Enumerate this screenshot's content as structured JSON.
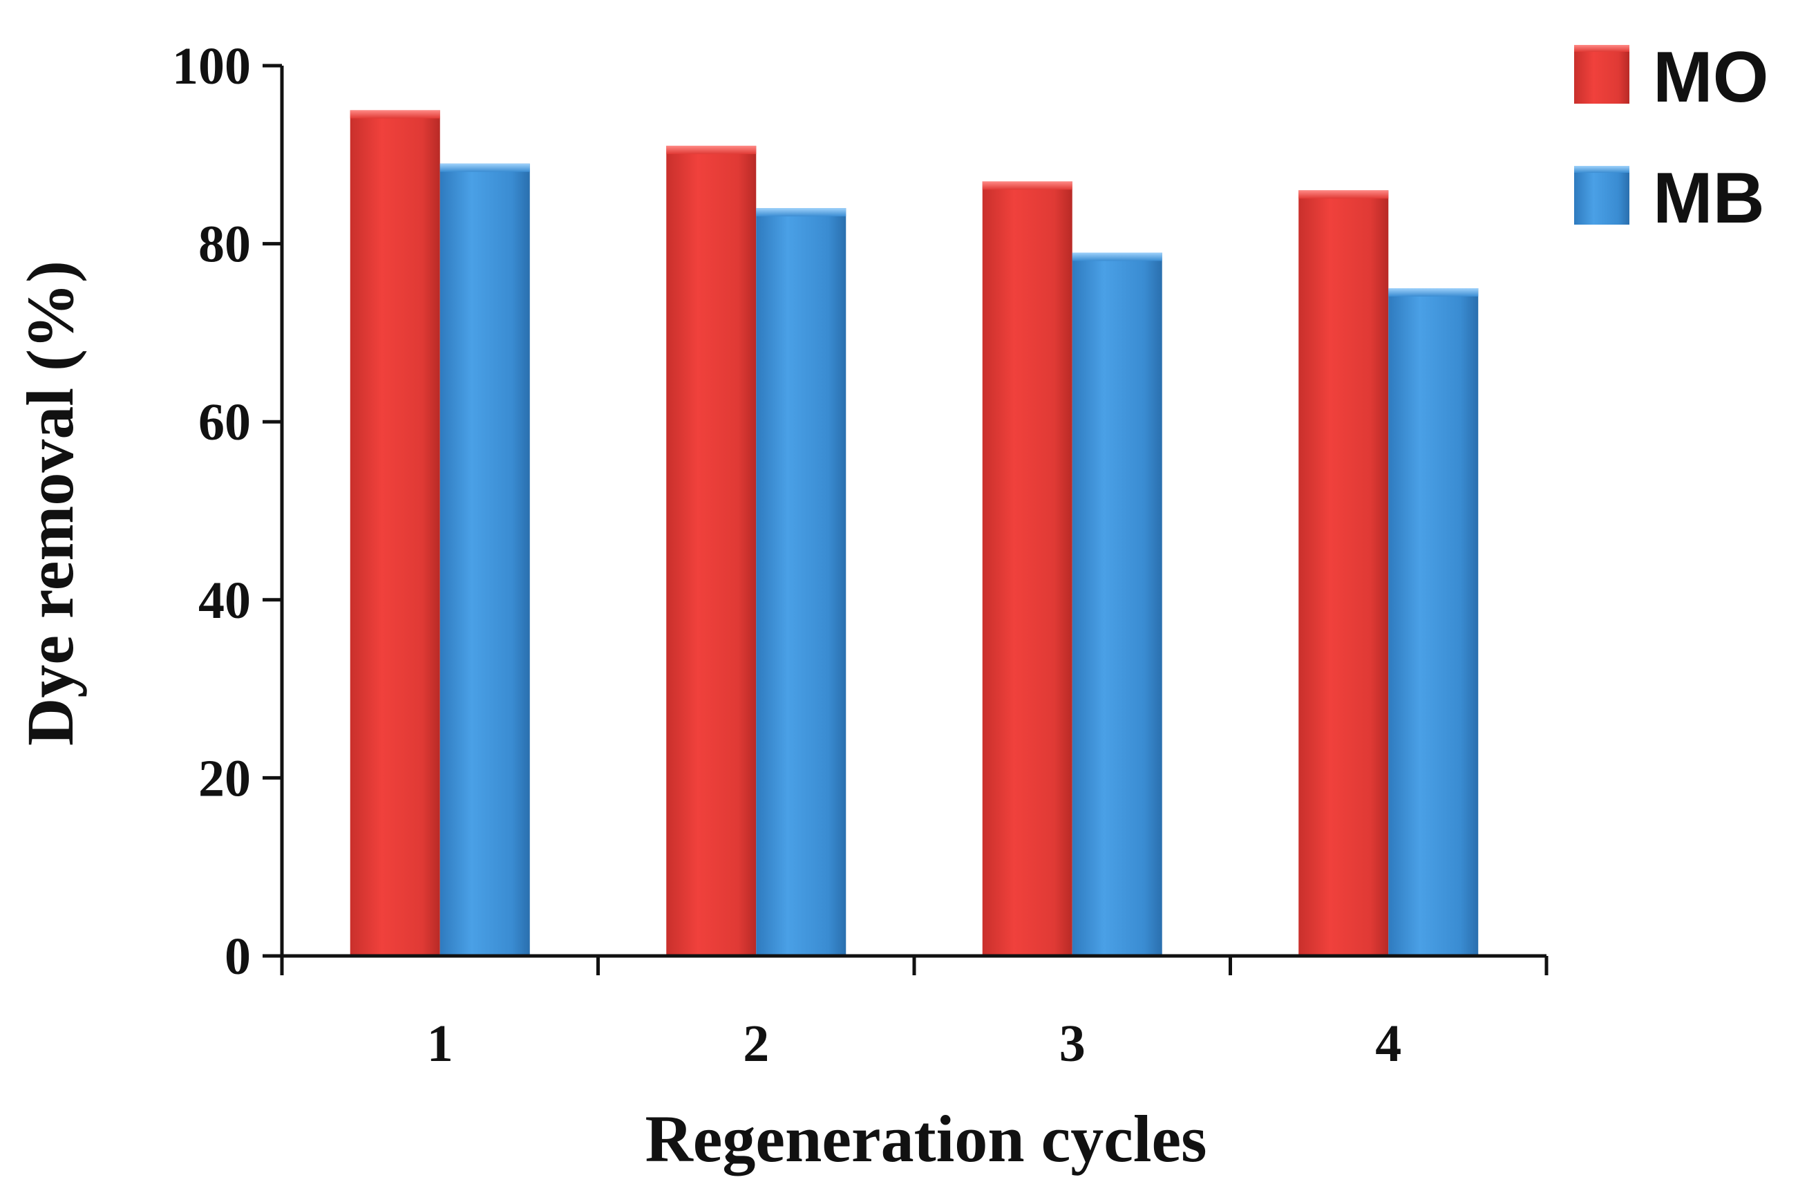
{
  "chart_data": {
    "type": "bar",
    "title": "",
    "xlabel": "Regeneration cycles",
    "ylabel": "Dye removal (%)",
    "categories": [
      "1",
      "2",
      "3",
      "4"
    ],
    "ylim": [
      0,
      100
    ],
    "yticks": [
      "0",
      "20",
      "40",
      "60",
      "80",
      "100"
    ],
    "grid": false,
    "legend_position": "top-right",
    "series": [
      {
        "name": "MO",
        "values": [
          95,
          91,
          87,
          86
        ],
        "color": "#e03a35"
      },
      {
        "name": "MB",
        "values": [
          89,
          84,
          79,
          75
        ],
        "color": "#3a8cd2"
      }
    ]
  }
}
